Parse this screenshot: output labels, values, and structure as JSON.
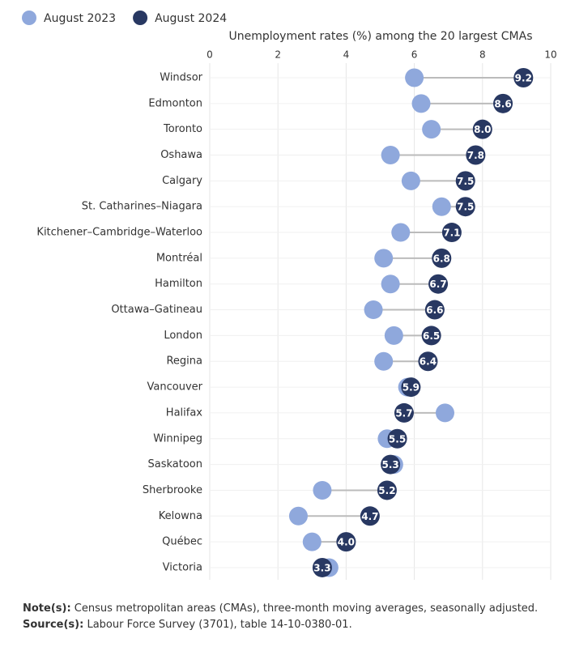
{
  "chart_data": {
    "type": "dumbbell",
    "title": "Unemployment rates (%) among the 20 largest CMAs",
    "categories": [
      "Windsor",
      "Edmonton",
      "Toronto",
      "Oshawa",
      "Calgary",
      "St. Catharines–Niagara",
      "Kitchener–Cambridge–Waterloo",
      "Montréal",
      "Hamilton",
      "Ottawa–Gatineau",
      "London",
      "Regina",
      "Vancouver",
      "Halifax",
      "Winnipeg",
      "Saskatoon",
      "Sherbrooke",
      "Kelowna",
      "Québec",
      "Victoria"
    ],
    "series": [
      {
        "name": "August 2023",
        "color": "#8fa8dc",
        "values": [
          6.0,
          6.2,
          6.5,
          5.3,
          5.9,
          6.8,
          5.6,
          5.1,
          5.3,
          4.8,
          5.4,
          5.1,
          5.8,
          6.9,
          5.2,
          5.4,
          3.3,
          2.6,
          3.0,
          3.5
        ]
      },
      {
        "name": "August 2024",
        "color": "#283862",
        "values": [
          9.2,
          8.6,
          8.0,
          7.8,
          7.5,
          7.5,
          7.1,
          6.8,
          6.7,
          6.6,
          6.5,
          6.4,
          5.9,
          5.7,
          5.5,
          5.3,
          5.2,
          4.7,
          4.0,
          3.3
        ],
        "value_labels": [
          "9.2",
          "8.6",
          "8.0",
          "7.8",
          "7.5",
          "7.5",
          "7.1",
          "6.8",
          "6.7",
          "6.6",
          "6.5",
          "6.4",
          "5.9",
          "5.7",
          "5.5",
          "5.3",
          "5.2",
          "4.7",
          "4.0",
          "3.3"
        ]
      }
    ],
    "xlim": [
      0,
      10
    ],
    "xticks": [
      0,
      2,
      4,
      6,
      8,
      10
    ],
    "grid": true,
    "legend": "top-left"
  },
  "notes": [
    {
      "label": "Note(s):",
      "text": " Census metropolitan areas (CMAs), three-month moving averages, seasonally adjusted."
    },
    {
      "label": "Source(s):",
      "text": " Labour Force Survey (3701), table 14-10-0380-01."
    }
  ]
}
